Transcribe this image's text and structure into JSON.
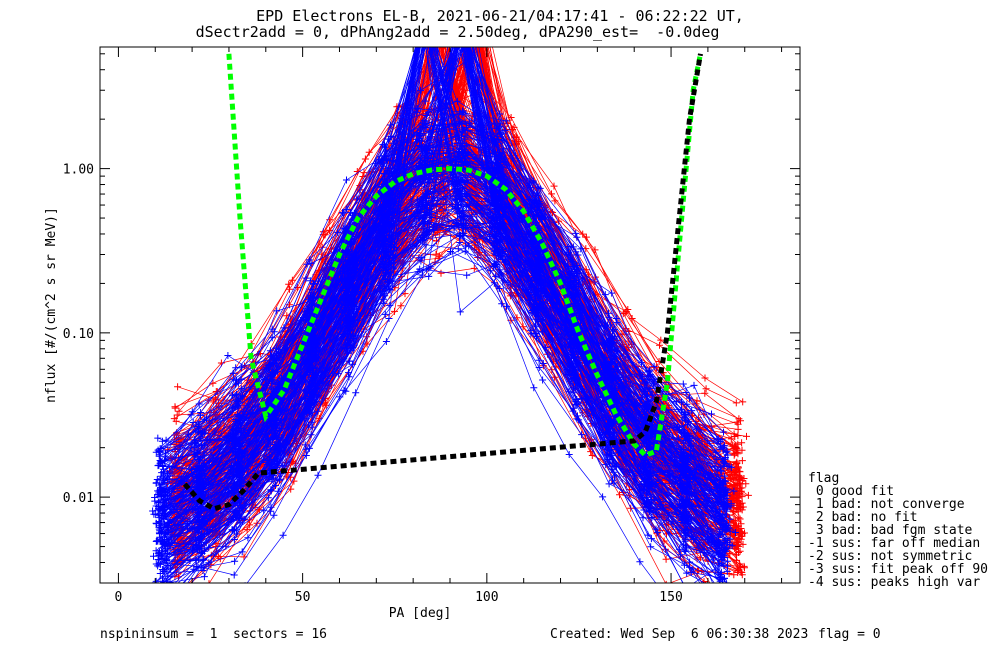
{
  "title_line1": "EPD Electrons EL-B, 2021-06-21/04:17:41 - 06:22:22 UT,",
  "title_line2": "dSectr2add = 0, dPhAng2add = 2.50deg, dPA290_est=  -0.0deg",
  "footer": {
    "left": "nspininsum =  1  sectors = 16",
    "created": "Created: Wed Sep  6 06:30:38 2023",
    "flag": "flag = 0"
  },
  "legend": {
    "title": "flag",
    "items": [
      " 0 good fit",
      " 1 bad: not converge",
      " 2 bad: no fit",
      " 3 bad: bad fgm state",
      "-1 sus: far off median",
      "-2 sus: not symmetric",
      "-3 sus: fit peak off 90",
      "-4 sus: peaks high var"
    ]
  },
  "colors": {
    "series_red": "#ff0000",
    "series_blue": "#0000ff",
    "fit_green": "#00ff00",
    "fit_black": "#000000",
    "axes": "#000000"
  },
  "chart_data": {
    "type": "line",
    "title": "EPD Electrons EL-B, 2021-06-21/04:17:41 - 06:22:22 UT,",
    "subtitle": "dSectr2add = 0, dPhAng2add = 2.50deg, dPA290_est=  -0.0deg",
    "xlabel": "PA [deg]",
    "ylabel": "nflux [#/(cm^2 s sr MeV)]",
    "x_scale": "linear",
    "y_scale": "log",
    "xlim": [
      -5,
      185
    ],
    "ylim": [
      0.003,
      5.5
    ],
    "x_ticks": [
      0,
      50,
      100,
      150
    ],
    "x_tick_labels": [
      "0",
      "50",
      "100",
      "150"
    ],
    "y_ticks": [
      0.01,
      0.1,
      1.0
    ],
    "y_tick_labels": [
      "0.01",
      "0.10",
      "1.00"
    ],
    "grid": false,
    "legend_position": "right",
    "series": [
      {
        "color": "red",
        "marker": "+",
        "description_count": 200,
        "envelope": {
          "pa": [
            16,
            25,
            35,
            45,
            55,
            65,
            75,
            85,
            95,
            105,
            115,
            125,
            135,
            145,
            155,
            168
          ],
          "median": [
            0.009,
            0.012,
            0.02,
            0.04,
            0.1,
            0.25,
            0.6,
            0.9,
            0.9,
            0.6,
            0.25,
            0.1,
            0.04,
            0.02,
            0.012,
            0.009
          ]
        }
      },
      {
        "color": "blue",
        "marker": "+",
        "description_count": 200,
        "envelope": {
          "pa": [
            12,
            25,
            35,
            45,
            55,
            65,
            75,
            85,
            95,
            105,
            115,
            125,
            135,
            145,
            155,
            164
          ],
          "median": [
            0.007,
            0.011,
            0.018,
            0.035,
            0.09,
            0.22,
            0.55,
            0.85,
            0.85,
            0.55,
            0.22,
            0.09,
            0.035,
            0.018,
            0.011,
            0.007
          ]
        }
      },
      {
        "color": "green",
        "style": "dashed-thick",
        "x": [
          30,
          33,
          36,
          40,
          45,
          50,
          55,
          60,
          65,
          70,
          75,
          80,
          85,
          90,
          95,
          100,
          105,
          110,
          115,
          120,
          125,
          130,
          135,
          140,
          143,
          146,
          149,
          152,
          156,
          158
        ],
        "y": [
          5.0,
          0.5,
          0.07,
          0.031,
          0.045,
          0.085,
          0.16,
          0.3,
          0.5,
          0.68,
          0.83,
          0.93,
          0.98,
          1.0,
          0.98,
          0.9,
          0.75,
          0.55,
          0.35,
          0.2,
          0.1,
          0.055,
          0.032,
          0.021,
          0.018,
          0.019,
          0.05,
          0.3,
          3.0,
          5.0
        ]
      },
      {
        "color": "black",
        "style": "dashed-thick",
        "x": [
          18,
          22,
          26,
          30,
          34,
          38,
          140,
          143,
          146,
          149,
          152,
          155,
          158
        ],
        "y": [
          0.012,
          0.0095,
          0.0085,
          0.009,
          0.011,
          0.014,
          0.022,
          0.025,
          0.038,
          0.1,
          0.45,
          2.0,
          5.0
        ]
      }
    ]
  }
}
